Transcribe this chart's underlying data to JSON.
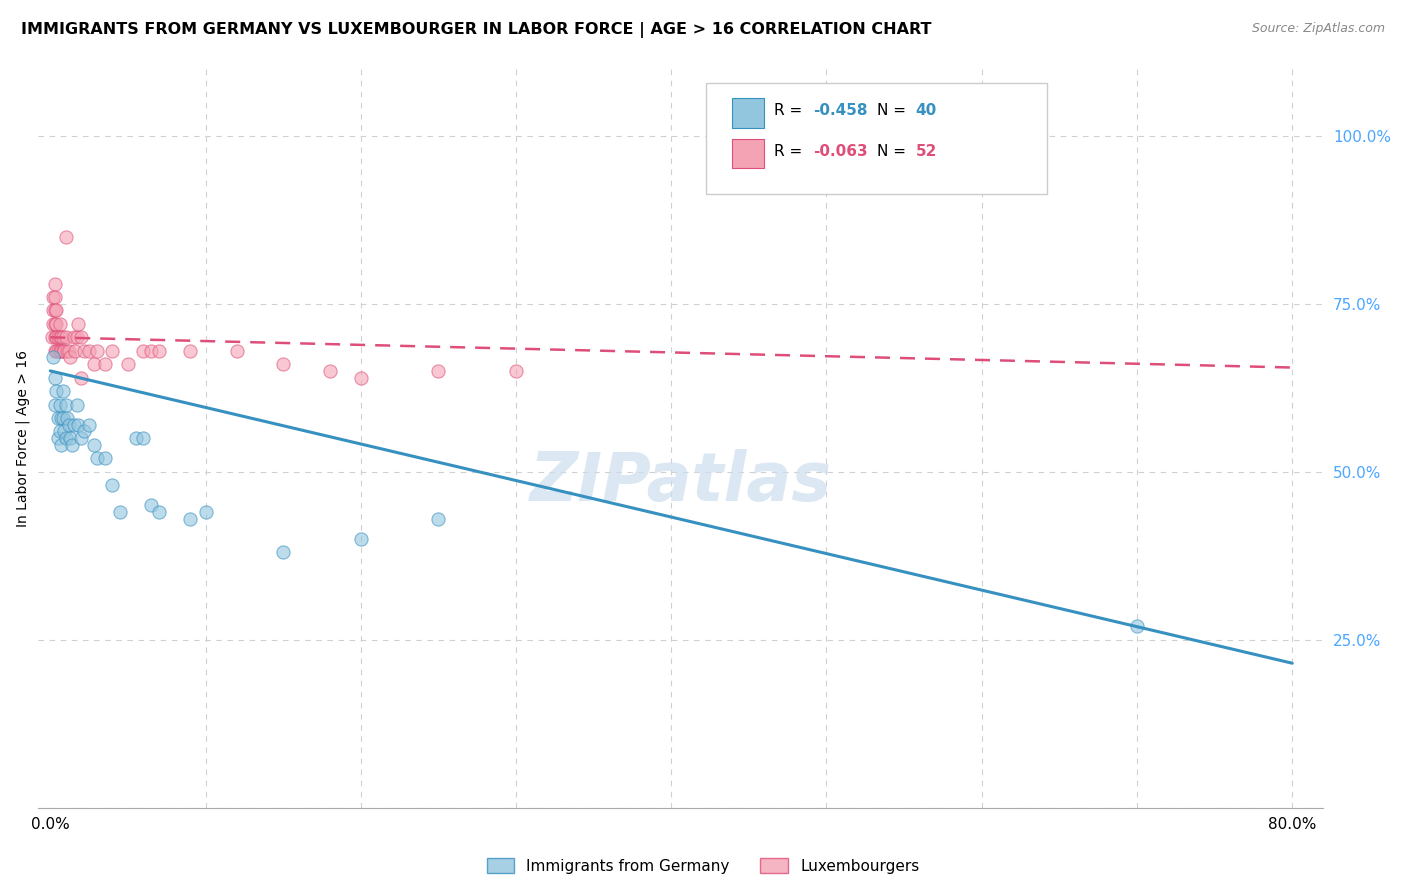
{
  "title": "IMMIGRANTS FROM GERMANY VS LUXEMBOURGER IN LABOR FORCE | AGE > 16 CORRELATION CHART",
  "source": "Source: ZipAtlas.com",
  "ylabel": "In Labor Force | Age > 16",
  "x_ticks": [
    0.0,
    0.1,
    0.2,
    0.3,
    0.4,
    0.5,
    0.6,
    0.7,
    0.8
  ],
  "x_tick_labels": [
    "0.0%",
    "",
    "",
    "",
    "",
    "",
    "",
    "",
    "80.0%"
  ],
  "y_ticks": [
    0.0,
    0.25,
    0.5,
    0.75,
    1.0
  ],
  "y_tick_labels": [
    "",
    "25.0%",
    "50.0%",
    "75.0%",
    "100.0%"
  ],
  "xlim": [
    -0.008,
    0.82
  ],
  "ylim": [
    0.0,
    1.1
  ],
  "blue_scatter_x": [
    0.002,
    0.003,
    0.003,
    0.004,
    0.005,
    0.005,
    0.006,
    0.006,
    0.007,
    0.007,
    0.008,
    0.008,
    0.009,
    0.01,
    0.01,
    0.011,
    0.012,
    0.013,
    0.014,
    0.015,
    0.017,
    0.018,
    0.02,
    0.022,
    0.025,
    0.028,
    0.03,
    0.035,
    0.04,
    0.045,
    0.055,
    0.06,
    0.065,
    0.07,
    0.09,
    0.1,
    0.15,
    0.2,
    0.25,
    0.7
  ],
  "blue_scatter_y": [
    0.67,
    0.64,
    0.6,
    0.62,
    0.58,
    0.55,
    0.6,
    0.56,
    0.58,
    0.54,
    0.62,
    0.58,
    0.56,
    0.6,
    0.55,
    0.58,
    0.57,
    0.55,
    0.54,
    0.57,
    0.6,
    0.57,
    0.55,
    0.56,
    0.57,
    0.54,
    0.52,
    0.52,
    0.48,
    0.44,
    0.55,
    0.55,
    0.45,
    0.44,
    0.43,
    0.44,
    0.38,
    0.4,
    0.43,
    0.27
  ],
  "pink_scatter_x": [
    0.001,
    0.002,
    0.002,
    0.002,
    0.003,
    0.003,
    0.003,
    0.003,
    0.003,
    0.003,
    0.004,
    0.004,
    0.004,
    0.004,
    0.005,
    0.005,
    0.006,
    0.006,
    0.006,
    0.007,
    0.007,
    0.008,
    0.008,
    0.009,
    0.01,
    0.011,
    0.012,
    0.013,
    0.015,
    0.016,
    0.017,
    0.018,
    0.02,
    0.022,
    0.025,
    0.028,
    0.03,
    0.04,
    0.05,
    0.06,
    0.065,
    0.07,
    0.09,
    0.12,
    0.15,
    0.18,
    0.2,
    0.25,
    0.3,
    0.035,
    0.02,
    0.01
  ],
  "pink_scatter_y": [
    0.7,
    0.72,
    0.74,
    0.76,
    0.68,
    0.7,
    0.72,
    0.74,
    0.76,
    0.78,
    0.68,
    0.7,
    0.72,
    0.74,
    0.68,
    0.7,
    0.68,
    0.7,
    0.72,
    0.68,
    0.7,
    0.68,
    0.7,
    0.68,
    0.7,
    0.68,
    0.68,
    0.67,
    0.7,
    0.68,
    0.7,
    0.72,
    0.7,
    0.68,
    0.68,
    0.66,
    0.68,
    0.68,
    0.66,
    0.68,
    0.68,
    0.68,
    0.68,
    0.68,
    0.66,
    0.65,
    0.64,
    0.65,
    0.65,
    0.66,
    0.64,
    0.85
  ],
  "blue_line_x": [
    0.0,
    0.8
  ],
  "blue_line_y": [
    0.65,
    0.215
  ],
  "pink_line_x": [
    0.0,
    0.8
  ],
  "pink_line_y": [
    0.7,
    0.655
  ],
  "blue_color": "#92c5de",
  "pink_color": "#f4a3b5",
  "blue_line_color": "#3690c0",
  "pink_line_color": "#de4e78",
  "legend_r1": "R = ",
  "legend_r1_val": "-0.458",
  "legend_n1": "N = ",
  "legend_n1_val": "40",
  "legend_r2": "R = ",
  "legend_r2_val": "-0.063",
  "legend_n2": "N = ",
  "legend_n2_val": "52",
  "title_fontsize": 11.5,
  "axis_label_fontsize": 10,
  "tick_fontsize": 11,
  "source_fontsize": 9,
  "right_tick_color": "#4da6ff",
  "grid_color": "#d0d0d0",
  "background_color": "#ffffff",
  "watermark_text": "ZIPatlas",
  "watermark_color": "#ccdded",
  "watermark_alpha": 0.7
}
